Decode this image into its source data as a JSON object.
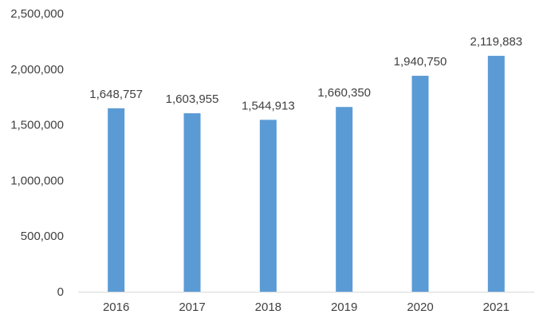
{
  "chart_data": {
    "type": "bar",
    "categories": [
      "2016",
      "2017",
      "2018",
      "2019",
      "2020",
      "2021"
    ],
    "values": [
      1648757,
      1603955,
      1544913,
      1660350,
      1940750,
      2119883
    ],
    "data_labels": [
      "1,648,757",
      "1,603,955",
      "1,544,913",
      "1,660,350",
      "1,940,750",
      "2,119,883"
    ],
    "ylim": [
      0,
      2500000
    ],
    "yticks": [
      0,
      500000,
      1000000,
      1500000,
      2000000,
      2500000
    ],
    "ytick_labels": [
      "0",
      "500,000",
      "1,000,000",
      "1,500,000",
      "2,000,000",
      "2,500,000"
    ],
    "grid": false,
    "legend": "none",
    "colors": {
      "bar": "#5b9bd5",
      "axis": "#d9d9d9",
      "text": "#404040"
    }
  }
}
